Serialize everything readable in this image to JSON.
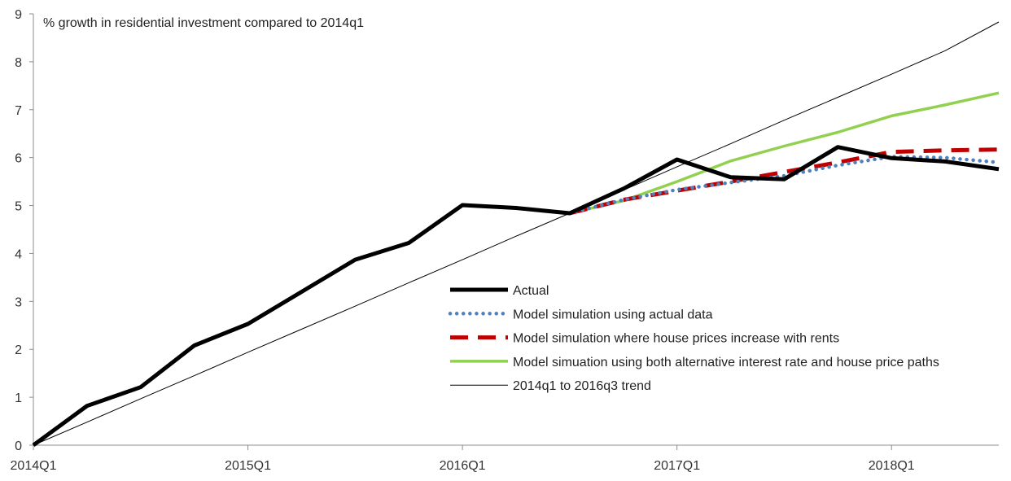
{
  "chart_data": {
    "type": "line",
    "title": "",
    "ylabel": "% growth in residential investment compared to 2014q1",
    "xlabel": "",
    "ylim": [
      0,
      9
    ],
    "yticks": [
      0,
      1,
      2,
      3,
      4,
      5,
      6,
      7,
      8,
      9
    ],
    "x": [
      "2014Q1",
      "2014Q2",
      "2014Q3",
      "2014Q4",
      "2015Q1",
      "2015Q2",
      "2015Q3",
      "2015Q4",
      "2016Q1",
      "2016Q2",
      "2016Q3",
      "2016Q4",
      "2017Q1",
      "2017Q2",
      "2017Q3",
      "2017Q4",
      "2018Q1",
      "2018Q2",
      "2018Q3"
    ],
    "xtick_labels": [
      "2014Q1",
      "2015Q1",
      "2016Q1",
      "2017Q1",
      "2018Q1"
    ],
    "grid": false,
    "legend_position": "center-right",
    "series": [
      {
        "name": "Actual",
        "color": "#000000",
        "style": "solid-thick",
        "values": [
          0,
          0.82,
          1.21,
          2.08,
          2.53,
          3.2,
          3.87,
          4.22,
          5.01,
          4.95,
          4.84,
          5.35,
          5.96,
          5.59,
          5.55,
          6.22,
          5.99,
          5.92,
          5.76
        ]
      },
      {
        "name": "Model simulation using actual data",
        "color": "#4f81bd",
        "style": "dotted",
        "values": [
          null,
          null,
          null,
          null,
          null,
          null,
          null,
          null,
          null,
          null,
          4.84,
          5.12,
          5.33,
          5.48,
          5.62,
          5.84,
          6.02,
          6.0,
          5.9
        ]
      },
      {
        "name": "Model simulation where house prices increase with rents",
        "color": "#c00000",
        "style": "dashed",
        "values": [
          null,
          null,
          null,
          null,
          null,
          null,
          null,
          null,
          null,
          null,
          4.84,
          5.12,
          5.31,
          5.5,
          5.7,
          5.9,
          6.12,
          6.15,
          6.17
        ]
      },
      {
        "name": "Model simuation using both alternative interest rate and house price paths",
        "color": "#92d050",
        "style": "solid",
        "values": [
          null,
          null,
          null,
          null,
          null,
          null,
          null,
          null,
          null,
          null,
          4.84,
          5.1,
          5.5,
          5.93,
          6.24,
          6.53,
          6.87,
          7.1,
          7.35
        ]
      },
      {
        "name": "2014q1 to 2016q3 trend",
        "color": "#000000",
        "style": "thin",
        "values": [
          0,
          0.48,
          0.97,
          1.45,
          1.94,
          2.42,
          2.9,
          3.39,
          3.87,
          4.36,
          4.84,
          5.32,
          5.81,
          6.29,
          6.78,
          7.26,
          7.74,
          8.23,
          8.83
        ]
      }
    ]
  }
}
